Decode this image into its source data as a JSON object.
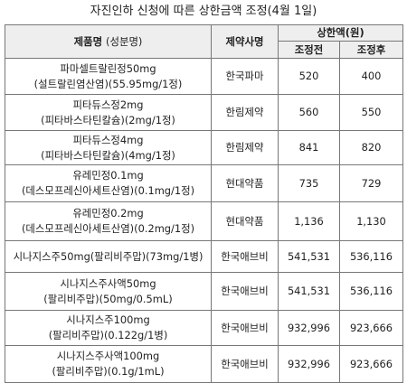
{
  "title": "자진인하 신청에 따른 상한금액 조정(4월 1일)",
  "header": {
    "product": "제품명",
    "ingredient": "(성분명)",
    "maker": "제약사명",
    "price_group": "상한액(원)",
    "before": "조정전",
    "after": "조정후"
  },
  "rows": [
    {
      "name_line1": "파마셀트랄린정50mg",
      "name_line2": "(설트랄린염산염)(55.95mg/1정)",
      "maker": "한국파마",
      "before": "520",
      "after": "400"
    },
    {
      "name_line1": "피타듀스정2mg",
      "name_line2": "(피타바스타틴칼슘)(2mg/1정)",
      "maker": "한림제약",
      "before": "560",
      "after": "550"
    },
    {
      "name_line1": "피타듀스정4mg",
      "name_line2": "(피타바스타틴칼슘)(4mg/1정)",
      "maker": "한림제약",
      "before": "841",
      "after": "820"
    },
    {
      "name_line1": "유레민정0.1mg",
      "name_line2": "(데스모프레신아세트산염)(0.1mg/1정)",
      "maker": "현대약품",
      "before": "735",
      "after": "729"
    },
    {
      "name_line1": "유레민정0.2mg",
      "name_line2": "(데스모프레신아세트산염)(0.2mg/1정)",
      "maker": "현대약품",
      "before": "1,136",
      "after": "1,130"
    },
    {
      "name_line1": "시나지스주50mg(팔리비주맙)(73mg/1병)",
      "name_line2": "",
      "maker": "한국애브비",
      "before": "541,531",
      "after": "536,116"
    },
    {
      "name_line1": "시나지스주사액50mg",
      "name_line2": "(팔리비주맙)(50mg/0.5mL)",
      "maker": "한국애브비",
      "before": "541,531",
      "after": "536,116"
    },
    {
      "name_line1": "시나지스주100mg",
      "name_line2": "(팔리비주맙)(0.122g/1병)",
      "maker": "한국애브비",
      "before": "932,996",
      "after": "923,666"
    },
    {
      "name_line1": "시나지스주사액100mg",
      "name_line2": "(팔리비주맙)(0.1g/1mL)",
      "maker": "한국애브비",
      "before": "932,996",
      "after": "923,666"
    }
  ]
}
